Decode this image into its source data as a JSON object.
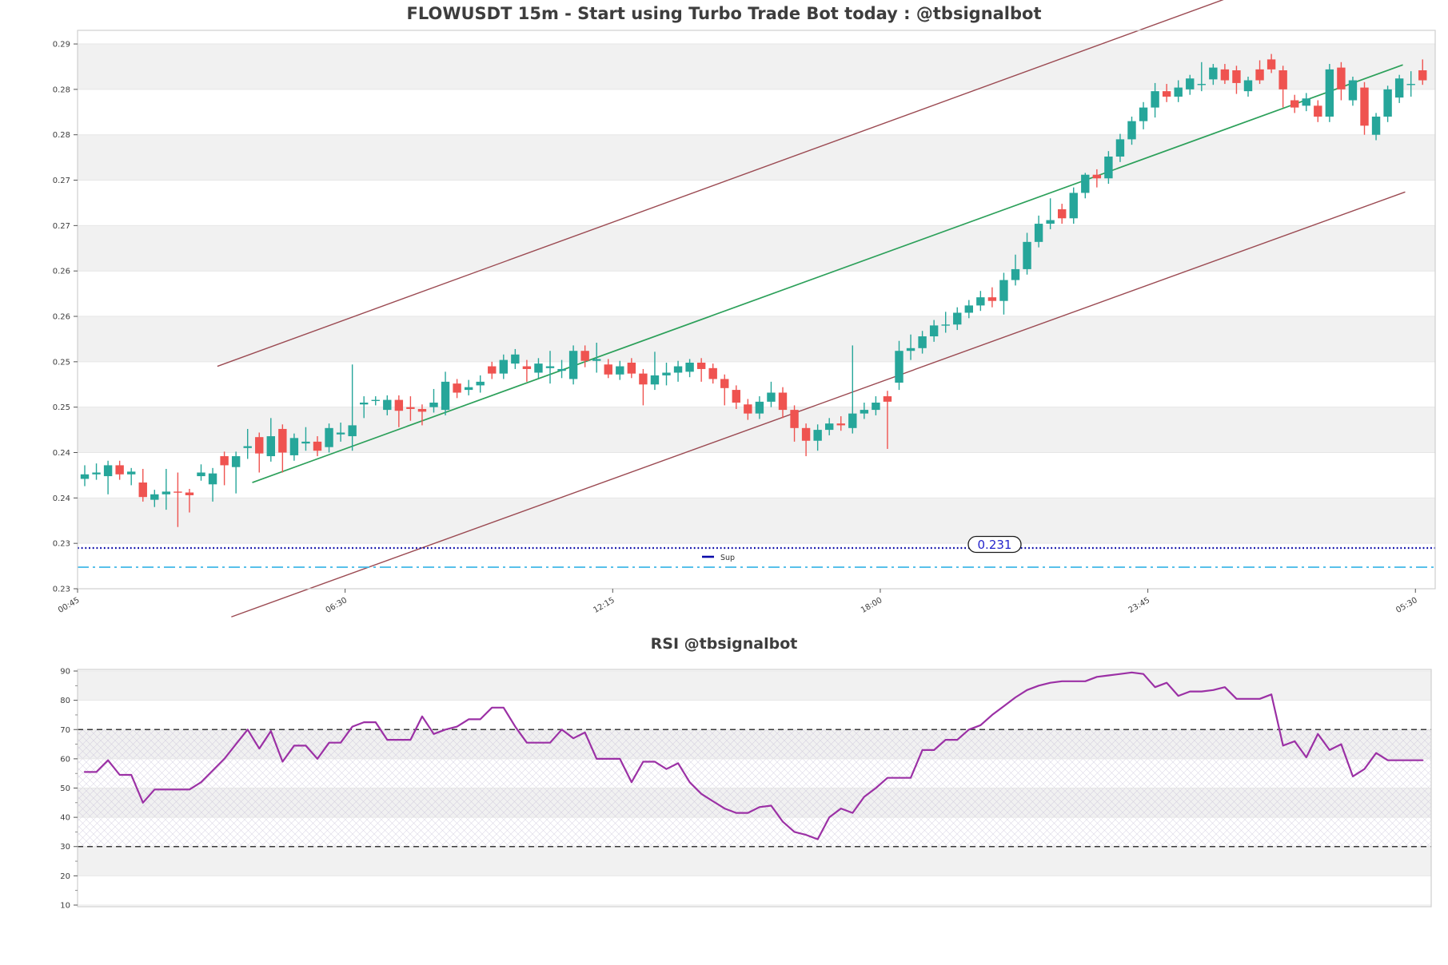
{
  "colors": {
    "up_candle": "#26a69a",
    "down_candle": "#ef5350",
    "trend_green": "#2ca05a",
    "channel_maroon": "#9b4a52",
    "support_blue": "#0a0aa8",
    "secondary_support_cyan": "#41b8e8",
    "rsi_purple": "#9b30a5",
    "threshold_dash": "#3a3a3a",
    "band_gray": "#f1f1f1",
    "spine_gray": "#cfcfcf",
    "title_text": "#3d3d3d",
    "tick_text": "#3c3c3c",
    "pill_text": "#2525cc"
  },
  "chart_data": [
    {
      "type": "candlestick",
      "title": "FLOWUSDT 15m - Start using Turbo Trade Bot today : @tbsignalbot",
      "ylim": [
        0.23,
        0.2915
      ],
      "y_ticks": [
        {
          "v": 0.29,
          "label": "0.29"
        },
        {
          "v": 0.285,
          "label": "0.28"
        },
        {
          "v": 0.28,
          "label": "0.28"
        },
        {
          "v": 0.275,
          "label": "0.27"
        },
        {
          "v": 0.27,
          "label": "0.27"
        },
        {
          "v": 0.265,
          "label": "0.26"
        },
        {
          "v": 0.26,
          "label": "0.26"
        },
        {
          "v": 0.255,
          "label": "0.25"
        },
        {
          "v": 0.25,
          "label": "0.25"
        },
        {
          "v": 0.245,
          "label": "0.24"
        },
        {
          "v": 0.24,
          "label": "0.24"
        },
        {
          "v": 0.235,
          "label": "0.23"
        },
        {
          "v": 0.23,
          "label": "0.23"
        }
      ],
      "x_ticks": [
        {
          "i": 0,
          "label": "00:45"
        },
        {
          "i": 23,
          "label": "06:30"
        },
        {
          "i": 46,
          "label": "12:15"
        },
        {
          "i": 69,
          "label": "18:00"
        },
        {
          "i": 92,
          "label": "23:45"
        },
        {
          "i": 115,
          "label": "05:30"
        }
      ],
      "support": {
        "label": "0.231",
        "legend_label": "Sup"
      },
      "trendlines": [
        {
          "name": "upper-channel-line",
          "color_key": "channel_maroon",
          "from_i": 11.4,
          "from_v": 0.2545,
          "to_i": 97.9,
          "to_v": 0.2949
        },
        {
          "name": "lower-channel-line",
          "color_key": "channel_maroon",
          "from_i": 12.6,
          "from_v": 0.2269,
          "to_i": 113.5,
          "to_v": 0.2737
        },
        {
          "name": "trend-line",
          "color_key": "trend_green",
          "from_i": 14.4,
          "from_v": 0.2417,
          "to_i": 113.3,
          "to_v": 0.2877
        }
      ],
      "ohlc": [
        [
          0.2421,
          0.2436,
          0.2413,
          0.2426
        ],
        [
          0.2426,
          0.2438,
          0.242,
          0.2428
        ],
        [
          0.2424,
          0.2441,
          0.2404,
          0.2436
        ],
        [
          0.2436,
          0.2441,
          0.242,
          0.2426
        ],
        [
          0.2426,
          0.2433,
          0.2414,
          0.2429
        ],
        [
          0.2417,
          0.2432,
          0.2396,
          0.2401
        ],
        [
          0.2398,
          0.2409,
          0.239,
          0.2404
        ],
        [
          0.2404,
          0.2432,
          0.2387,
          0.2407
        ],
        [
          0.2407,
          0.2428,
          0.2368,
          0.2406
        ],
        [
          0.2406,
          0.241,
          0.2384,
          0.2403
        ],
        [
          0.2424,
          0.2437,
          0.2419,
          0.2428
        ],
        [
          0.2415,
          0.2433,
          0.2396,
          0.2427
        ],
        [
          0.2446,
          0.2451,
          0.2414,
          0.2436
        ],
        [
          0.2434,
          0.2451,
          0.2405,
          0.2446
        ],
        [
          0.2455,
          0.2476,
          0.2443,
          0.2457
        ],
        [
          0.2467,
          0.2472,
          0.2428,
          0.2449
        ],
        [
          0.2446,
          0.2488,
          0.244,
          0.2468
        ],
        [
          0.2476,
          0.2481,
          0.2428,
          0.245
        ],
        [
          0.2447,
          0.2471,
          0.2441,
          0.2466
        ],
        [
          0.246,
          0.2478,
          0.2452,
          0.2462
        ],
        [
          0.2462,
          0.2468,
          0.2446,
          0.2452
        ],
        [
          0.2456,
          0.2482,
          0.245,
          0.2477
        ],
        [
          0.247,
          0.2483,
          0.2462,
          0.2472
        ],
        [
          0.2468,
          0.2547,
          0.2452,
          0.248
        ],
        [
          0.2503,
          0.2512,
          0.2488,
          0.2505
        ],
        [
          0.2508,
          0.2512,
          0.2502,
          0.2508
        ],
        [
          0.2497,
          0.2513,
          0.2491,
          0.2508
        ],
        [
          0.2508,
          0.2513,
          0.2478,
          0.2496
        ],
        [
          0.25,
          0.2512,
          0.2485,
          0.2498
        ],
        [
          0.2498,
          0.2503,
          0.248,
          0.2495
        ],
        [
          0.25,
          0.252,
          0.2494,
          0.2505
        ],
        [
          0.2497,
          0.2539,
          0.2491,
          0.2528
        ],
        [
          0.2526,
          0.2531,
          0.251,
          0.2516
        ],
        [
          0.2519,
          0.253,
          0.2513,
          0.2522
        ],
        [
          0.2524,
          0.2535,
          0.2516,
          0.2528
        ],
        [
          0.2545,
          0.255,
          0.2531,
          0.2537
        ],
        [
          0.2537,
          0.2558,
          0.2531,
          0.2552
        ],
        [
          0.2548,
          0.2564,
          0.2542,
          0.2558
        ],
        [
          0.2545,
          0.2552,
          0.2528,
          0.2542
        ],
        [
          0.2538,
          0.2554,
          0.2532,
          0.2548
        ],
        [
          0.2543,
          0.2562,
          0.2526,
          0.2545
        ],
        [
          0.254,
          0.2552,
          0.2532,
          0.2542
        ],
        [
          0.2531,
          0.2568,
          0.2525,
          0.2562
        ],
        [
          0.2562,
          0.2568,
          0.2544,
          0.2551
        ],
        [
          0.2551,
          0.2571,
          0.2538,
          0.2553
        ],
        [
          0.2547,
          0.2553,
          0.2532,
          0.2536
        ],
        [
          0.2536,
          0.2551,
          0.253,
          0.2545
        ],
        [
          0.2549,
          0.2554,
          0.2532,
          0.2537
        ],
        [
          0.2537,
          0.2542,
          0.2502,
          0.2525
        ],
        [
          0.2525,
          0.2561,
          0.2519,
          0.2535
        ],
        [
          0.2535,
          0.2549,
          0.2524,
          0.2538
        ],
        [
          0.2538,
          0.2551,
          0.2528,
          0.2545
        ],
        [
          0.2539,
          0.2553,
          0.2533,
          0.2549
        ],
        [
          0.2549,
          0.2554,
          0.2528,
          0.2542
        ],
        [
          0.2543,
          0.2548,
          0.2526,
          0.2531
        ],
        [
          0.2531,
          0.2536,
          0.2502,
          0.2521
        ],
        [
          0.2519,
          0.2524,
          0.2498,
          0.2505
        ],
        [
          0.2503,
          0.2509,
          0.2486,
          0.2493
        ],
        [
          0.2493,
          0.2512,
          0.2487,
          0.2506
        ],
        [
          0.2506,
          0.2528,
          0.25,
          0.2516
        ],
        [
          0.2516,
          0.2522,
          0.2488,
          0.2497
        ],
        [
          0.2497,
          0.2502,
          0.2462,
          0.2477
        ],
        [
          0.2477,
          0.2482,
          0.2446,
          0.2463
        ],
        [
          0.2463,
          0.2481,
          0.2452,
          0.2475
        ],
        [
          0.2475,
          0.2488,
          0.2469,
          0.2482
        ],
        [
          0.2482,
          0.249,
          0.2474,
          0.248
        ],
        [
          0.2477,
          0.2568,
          0.2471,
          0.2493
        ],
        [
          0.2493,
          0.2505,
          0.2487,
          0.2497
        ],
        [
          0.2497,
          0.2512,
          0.2491,
          0.2505
        ],
        [
          0.2512,
          0.2518,
          0.2454,
          0.2506
        ],
        [
          0.2527,
          0.2573,
          0.2519,
          0.2562
        ],
        [
          0.2562,
          0.258,
          0.2552,
          0.2565
        ],
        [
          0.2565,
          0.2584,
          0.2559,
          0.2578
        ],
        [
          0.2578,
          0.2596,
          0.2572,
          0.259
        ],
        [
          0.259,
          0.2605,
          0.2582,
          0.2591
        ],
        [
          0.2591,
          0.261,
          0.2585,
          0.2604
        ],
        [
          0.2604,
          0.2618,
          0.2598,
          0.2612
        ],
        [
          0.2612,
          0.2628,
          0.2606,
          0.2621
        ],
        [
          0.2621,
          0.2632,
          0.261,
          0.2617
        ],
        [
          0.2617,
          0.2648,
          0.2602,
          0.264
        ],
        [
          0.264,
          0.2668,
          0.2634,
          0.2652
        ],
        [
          0.2652,
          0.2692,
          0.2646,
          0.2682
        ],
        [
          0.2682,
          0.2711,
          0.2676,
          0.2702
        ],
        [
          0.2702,
          0.273,
          0.2696,
          0.2706
        ],
        [
          0.2718,
          0.2724,
          0.2702,
          0.2708
        ],
        [
          0.2708,
          0.2742,
          0.2702,
          0.2736
        ],
        [
          0.2736,
          0.2758,
          0.273,
          0.2756
        ],
        [
          0.2756,
          0.2762,
          0.2742,
          0.2752
        ],
        [
          0.2752,
          0.2782,
          0.2746,
          0.2776
        ],
        [
          0.2776,
          0.2801,
          0.277,
          0.2795
        ],
        [
          0.2795,
          0.282,
          0.2789,
          0.2815
        ],
        [
          0.2815,
          0.2836,
          0.2806,
          0.283
        ],
        [
          0.283,
          0.2857,
          0.2819,
          0.2848
        ],
        [
          0.2848,
          0.2856,
          0.2836,
          0.2842
        ],
        [
          0.2842,
          0.286,
          0.2836,
          0.2852
        ],
        [
          0.285,
          0.2866,
          0.2844,
          0.2862
        ],
        [
          0.2855,
          0.288,
          0.2848,
          0.2856
        ],
        [
          0.2861,
          0.2878,
          0.2855,
          0.2874
        ],
        [
          0.2872,
          0.2878,
          0.2856,
          0.286
        ],
        [
          0.2871,
          0.2876,
          0.2845,
          0.2857
        ],
        [
          0.2848,
          0.2864,
          0.2842,
          0.286
        ],
        [
          0.2872,
          0.2882,
          0.2856,
          0.286
        ],
        [
          0.2883,
          0.2889,
          0.2868,
          0.2872
        ],
        [
          0.2871,
          0.2876,
          0.283,
          0.285
        ],
        [
          0.2838,
          0.2844,
          0.2824,
          0.283
        ],
        [
          0.2832,
          0.2846,
          0.2826,
          0.284
        ],
        [
          0.2832,
          0.2838,
          0.2814,
          0.282
        ],
        [
          0.282,
          0.2878,
          0.2814,
          0.2872
        ],
        [
          0.2874,
          0.288,
          0.2838,
          0.285
        ],
        [
          0.2838,
          0.2864,
          0.2832,
          0.286
        ],
        [
          0.2852,
          0.2858,
          0.28,
          0.281
        ],
        [
          0.28,
          0.2824,
          0.2794,
          0.282
        ],
        [
          0.282,
          0.2854,
          0.2814,
          0.285
        ],
        [
          0.2841,
          0.2866,
          0.2835,
          0.2862
        ],
        [
          0.2855,
          0.287,
          0.2842,
          0.2856
        ],
        [
          0.2871,
          0.2883,
          0.2855,
          0.286
        ]
      ]
    },
    {
      "type": "line",
      "title": "RSI @tbsignalbot",
      "ylim": [
        9.45,
        90.55
      ],
      "overbought": 70,
      "oversold": 30,
      "y_ticks": [
        {
          "v": 90,
          "label": "90"
        },
        {
          "v": 80,
          "label": "80"
        },
        {
          "v": 70,
          "label": "70"
        },
        {
          "v": 60,
          "label": "60"
        },
        {
          "v": 50,
          "label": "50"
        },
        {
          "v": 40,
          "label": "40"
        },
        {
          "v": 30,
          "label": "30"
        },
        {
          "v": 20,
          "label": "20"
        },
        {
          "v": 10,
          "label": "10"
        }
      ],
      "values": [
        55.5,
        55.5,
        59.5,
        54.5,
        54.5,
        45,
        49.5,
        49.5,
        49.5,
        49.5,
        52,
        56,
        60,
        65,
        70,
        63.5,
        69.5,
        59,
        64.5,
        64.5,
        60,
        65.5,
        65.5,
        71,
        72.5,
        72.5,
        66.5,
        66.5,
        66.5,
        74.5,
        68.5,
        70,
        71,
        73.5,
        73.5,
        77.5,
        77.5,
        71,
        65.5,
        65.5,
        65.5,
        70,
        67,
        69,
        60,
        60,
        60,
        52,
        59,
        59,
        56.5,
        58.5,
        52,
        48,
        45.5,
        43,
        41.5,
        41.5,
        43.5,
        44,
        38.5,
        35,
        34,
        32.5,
        40,
        43,
        41.5,
        47,
        50,
        53.5,
        53.5,
        53.5,
        63,
        63,
        66.5,
        66.5,
        70,
        71.5,
        75,
        78,
        81,
        83.5,
        85,
        86,
        86.5,
        86.5,
        86.5,
        88,
        88.5,
        89,
        89.5,
        89,
        84.5,
        86,
        81.5,
        83,
        83,
        83.5,
        84.5,
        80.5,
        80.5,
        80.5,
        82,
        64.5,
        66,
        60.5,
        68.5,
        63,
        65,
        54,
        56.5,
        62,
        59.5,
        59.5,
        59.5,
        59.5
      ]
    }
  ]
}
